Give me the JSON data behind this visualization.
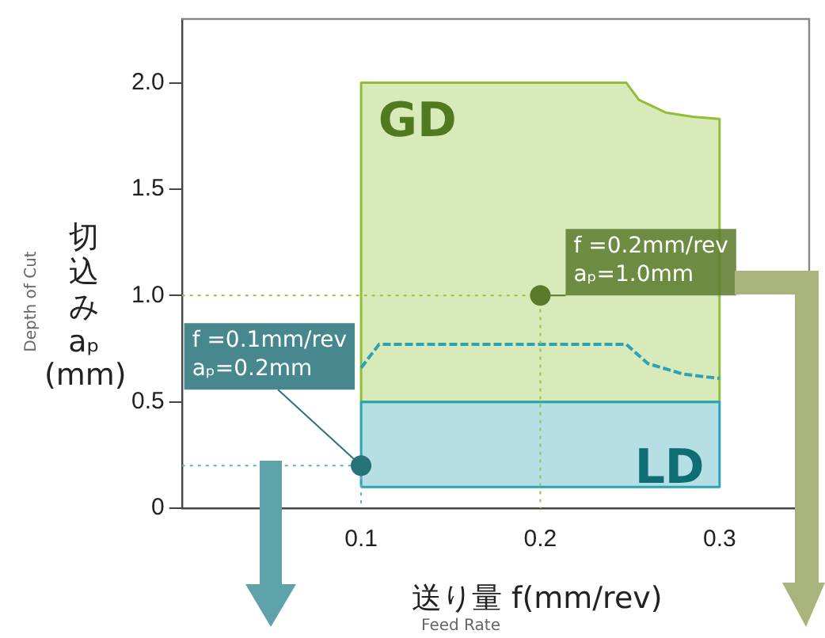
{
  "chart_data": {
    "type": "area",
    "xlabel": "送り量 f(mm/rev)",
    "ylabel": "切込み aₚ (mm)",
    "xlim": [
      0,
      0.35
    ],
    "xticks": [
      0.1,
      0.2,
      0.3
    ],
    "ylim": [
      0,
      2.3
    ],
    "yticks": [
      0,
      0.5,
      {
        "value": 1,
        "label": "1.0"
      },
      1.5,
      {
        "value": 2,
        "label": "2.0"
      }
    ],
    "grid": false,
    "legend": false,
    "series": [
      {
        "type": "area",
        "color": "#8fbf3a",
        "x": [
          0.1,
          0.1,
          0.248,
          0.255,
          0.27,
          0.285,
          0.3,
          0.3,
          0.1
        ],
        "values": [
          0.5,
          2.0,
          2.0,
          1.92,
          1.86,
          1.84,
          1.83,
          0.5,
          0.5
        ]
      },
      {
        "type": "area",
        "color": "#2ba3b3",
        "x": [
          0.1,
          0.1,
          0.3,
          0.3,
          0.1
        ],
        "values": [
          0.1,
          0.5,
          0.5,
          0.1,
          0.1
        ]
      },
      {
        "type": "line",
        "color": "#2ba3b3",
        "line_style": "dashed",
        "x": [
          0.1,
          0.11,
          0.248,
          0.26,
          0.28,
          0.3
        ],
        "values": [
          0.66,
          0.77,
          0.77,
          0.68,
          0.63,
          0.61
        ]
      },
      {
        "type": "line",
        "color": "#9bc04a",
        "line_style": "dotted",
        "x": [
          0,
          0.2,
          0.2
        ],
        "values": [
          1.0,
          1.0,
          0
        ]
      },
      {
        "type": "line",
        "color": "#5fb3bc",
        "line_style": "dotted",
        "x": [
          0,
          0.1,
          0.1
        ],
        "values": [
          0.2,
          0.2,
          0
        ]
      },
      {
        "type": "scatter",
        "marker": "circle",
        "colors": [
          "#5a7a2c",
          "#26737a"
        ],
        "x": [
          0.2,
          0.1
        ],
        "values": [
          1.0,
          0.2
        ]
      }
    ],
    "annotations": [
      "GD",
      "LD",
      {
        "text": "f =0.2mm/rev\naₚ=1.0mm",
        "x": 0.2,
        "y": 1.0
      },
      {
        "text": "f =0.1mm/rev\naₚ=0.2mm",
        "x": 0.1,
        "y": 0.2
      },
      "Depth of Cut",
      "Feed Rate"
    ]
  }
}
